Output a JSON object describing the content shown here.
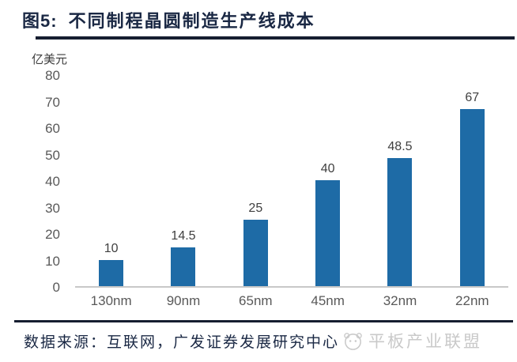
{
  "header": {
    "figure_label": "图5:",
    "title": "不同制程晶圆制造生产线成本"
  },
  "chart_data": {
    "type": "bar",
    "categories": [
      "130nm",
      "90nm",
      "65nm",
      "45nm",
      "32nm",
      "22nm"
    ],
    "values": [
      10,
      14.5,
      25,
      40,
      48.5,
      67
    ],
    "data_labels": [
      "10",
      "14.5",
      "25",
      "40",
      "48.5",
      "67"
    ],
    "title": "不同制程晶圆制造生产线成本",
    "xlabel": "",
    "ylabel": "亿美元",
    "unit_label": "亿美元",
    "ylim": [
      0,
      80
    ],
    "ytick_step": 10,
    "grid": false,
    "legend": false,
    "bar_color": "#1e6ba6"
  },
  "footer": {
    "source_text": "数据来源：互联网，广发证券发展研究中心",
    "watermark_text": "平板产业联盟"
  },
  "colors": {
    "accent_navy": "#1a2844",
    "rule_dark": "#161e30",
    "bar_blue": "#1e6ba6",
    "axis_gray": "#595959",
    "baseline_gray": "#c8c8c8",
    "watermark_gray": "#c9c9c9"
  }
}
